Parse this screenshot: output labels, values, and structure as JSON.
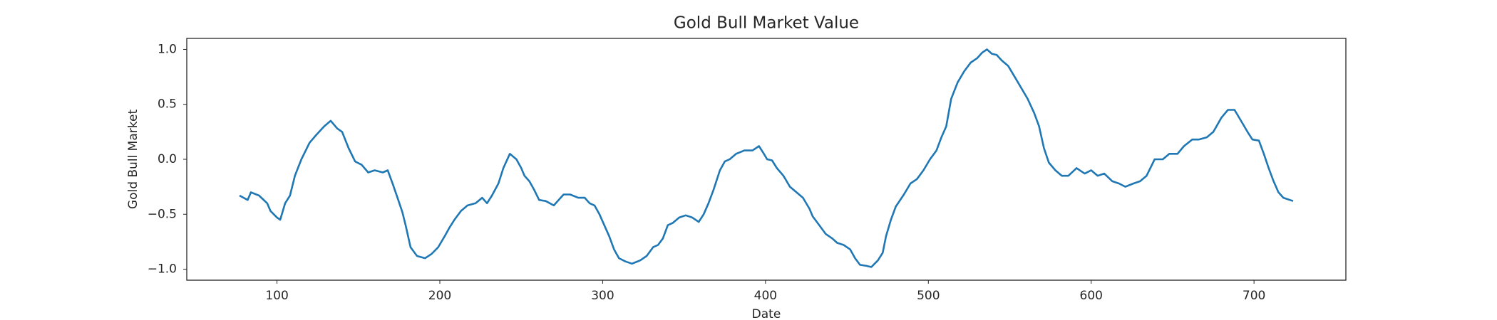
{
  "chart_data": {
    "type": "line",
    "title": "Gold Bull Market Value",
    "x_label": "Date",
    "y_label": "Gold Bull Market",
    "x": [
      77,
      82,
      84,
      89,
      94,
      96,
      100,
      102,
      105,
      108,
      111,
      115,
      120,
      124,
      129,
      133,
      137,
      140,
      144,
      148,
      152,
      156,
      160,
      165,
      168,
      171,
      174,
      177,
      179,
      182,
      186,
      191,
      195,
      199,
      203,
      206,
      209,
      213,
      217,
      222,
      226,
      229,
      232,
      236,
      239,
      243,
      247,
      250,
      252,
      255,
      258,
      261,
      265,
      270,
      273,
      276,
      280,
      285,
      289,
      292,
      295,
      298,
      301,
      304,
      307,
      310,
      314,
      318,
      323,
      327,
      331,
      334,
      337,
      340,
      343,
      347,
      351,
      355,
      359,
      362,
      365,
      368,
      372,
      375,
      378,
      382,
      387,
      392,
      396,
      399,
      401,
      404,
      407,
      411,
      415,
      419,
      423,
      427,
      429,
      432,
      437,
      441,
      444,
      448,
      452,
      455,
      458,
      462,
      465,
      469,
      472,
      474,
      477,
      480,
      485,
      489,
      493,
      497,
      501,
      505,
      508,
      511,
      514,
      518,
      522,
      526,
      530,
      533,
      536,
      539,
      542,
      545,
      549,
      553,
      557,
      561,
      565,
      568,
      571,
      574,
      578,
      582,
      586,
      591,
      596,
      600,
      604,
      608,
      613,
      617,
      621,
      626,
      630,
      634,
      639,
      644,
      648,
      653,
      657,
      662,
      666,
      671,
      675,
      680,
      684,
      688,
      692,
      696,
      699,
      703,
      706,
      709,
      712,
      715,
      718,
      722,
      724
    ],
    "series": [
      {
        "name": "Gold Bull Market",
        "color": "#1f77b4",
        "values": [
          -0.33,
          -0.37,
          -0.3,
          -0.33,
          -0.4,
          -0.47,
          -0.53,
          -0.55,
          -0.4,
          -0.33,
          -0.15,
          0.0,
          0.15,
          0.22,
          0.3,
          0.35,
          0.28,
          0.25,
          0.1,
          -0.02,
          -0.05,
          -0.12,
          -0.1,
          -0.12,
          -0.1,
          -0.22,
          -0.35,
          -0.48,
          -0.6,
          -0.8,
          -0.88,
          -0.9,
          -0.86,
          -0.8,
          -0.7,
          -0.62,
          -0.55,
          -0.47,
          -0.42,
          -0.4,
          -0.35,
          -0.4,
          -0.33,
          -0.22,
          -0.08,
          0.05,
          0.0,
          -0.08,
          -0.15,
          -0.2,
          -0.28,
          -0.37,
          -0.38,
          -0.42,
          -0.37,
          -0.32,
          -0.32,
          -0.35,
          -0.35,
          -0.4,
          -0.42,
          -0.5,
          -0.6,
          -0.7,
          -0.82,
          -0.9,
          -0.93,
          -0.95,
          -0.92,
          -0.88,
          -0.8,
          -0.78,
          -0.72,
          -0.6,
          -0.58,
          -0.53,
          -0.51,
          -0.53,
          -0.57,
          -0.5,
          -0.4,
          -0.28,
          -0.1,
          -0.02,
          0.0,
          0.05,
          0.08,
          0.08,
          0.12,
          0.05,
          0.0,
          -0.01,
          -0.08,
          -0.15,
          -0.25,
          -0.3,
          -0.35,
          -0.45,
          -0.52,
          -0.58,
          -0.68,
          -0.72,
          -0.76,
          -0.78,
          -0.82,
          -0.9,
          -0.96,
          -0.97,
          -0.98,
          -0.92,
          -0.85,
          -0.7,
          -0.55,
          -0.43,
          -0.32,
          -0.22,
          -0.18,
          -0.1,
          0.0,
          0.08,
          0.2,
          0.3,
          0.55,
          0.7,
          0.8,
          0.88,
          0.92,
          0.97,
          1.0,
          0.96,
          0.95,
          0.9,
          0.85,
          0.75,
          0.65,
          0.55,
          0.42,
          0.3,
          0.1,
          -0.03,
          -0.1,
          -0.15,
          -0.15,
          -0.08,
          -0.13,
          -0.1,
          -0.15,
          -0.13,
          -0.2,
          -0.22,
          -0.25,
          -0.22,
          -0.2,
          -0.15,
          0.0,
          0.0,
          0.05,
          0.05,
          0.12,
          0.18,
          0.18,
          0.2,
          0.25,
          0.38,
          0.45,
          0.45,
          0.35,
          0.25,
          0.18,
          0.17,
          0.05,
          -0.08,
          -0.2,
          -0.3,
          -0.35,
          -0.37,
          -0.38
        ]
      }
    ],
    "xlim": [
      44.6,
      756.4
    ],
    "ylim": [
      -1.1,
      1.1
    ],
    "xticks": [
      100,
      200,
      300,
      400,
      500,
      600,
      700
    ],
    "yticks": [
      {
        "value": -1.0,
        "label": "−1.0"
      },
      {
        "value": -0.5,
        "label": "−0.5"
      },
      {
        "value": 0.0,
        "label": "0.0"
      },
      0.5,
      {
        "value": 1.0,
        "label": "1.0"
      }
    ],
    "grid": false
  }
}
